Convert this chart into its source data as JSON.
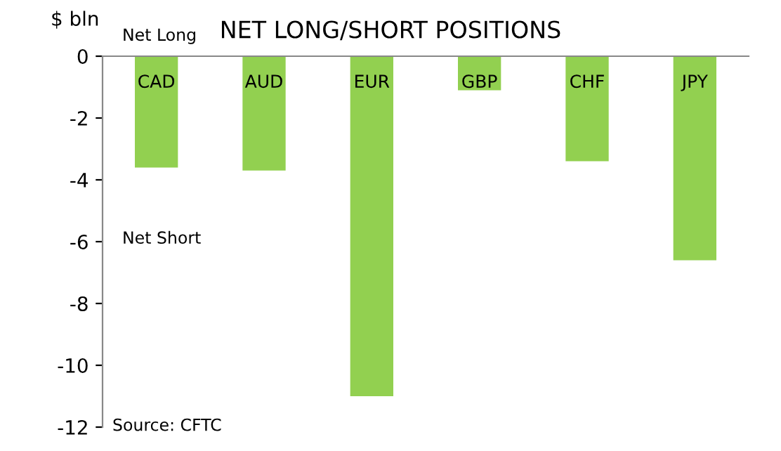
{
  "chart_data": {
    "type": "bar",
    "title": "NET LONG/SHORT POSITIONS",
    "ylabel": "$ bln",
    "categories": [
      "CAD",
      "AUD",
      "EUR",
      "GBP",
      "CHF",
      "JPY"
    ],
    "values": [
      -3.6,
      -3.7,
      -11.0,
      -1.1,
      -3.4,
      -6.6
    ],
    "color": "#92d050",
    "ylim": [
      -12,
      0
    ],
    "yticks": [
      -12,
      -10,
      -8,
      -6,
      -4,
      -2,
      0
    ],
    "grid": false,
    "annotations": [
      "Net Long",
      "Net Short",
      "Source: CFTC"
    ]
  }
}
